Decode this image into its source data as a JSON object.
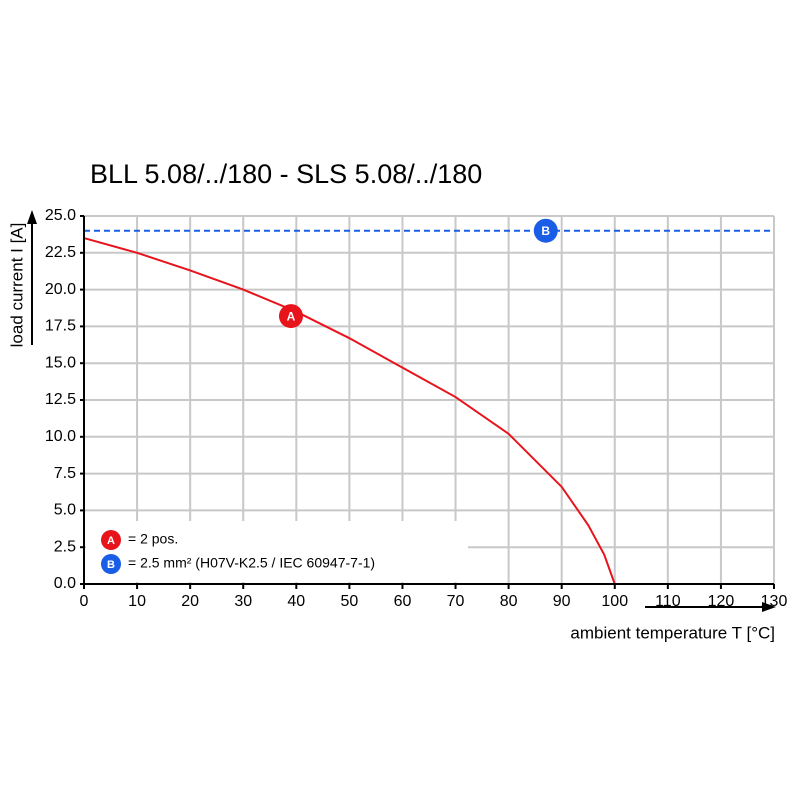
{
  "chart_data": {
    "type": "line",
    "title": "BLL 5.08/../180 - SLS 5.08/../180",
    "y_label": "load current I [A]",
    "x_label": "ambient temperature T [°C]",
    "xlim": [
      0,
      130
    ],
    "ylim": [
      0,
      25
    ],
    "xticks": [
      0,
      10,
      20,
      30,
      40,
      50,
      60,
      70,
      80,
      90,
      100,
      110,
      120,
      130
    ],
    "yticks": [
      {
        "value": 0,
        "label": "0.0"
      },
      {
        "value": 2.5,
        "label": "2.5"
      },
      {
        "value": 5,
        "label": "5.0"
      },
      {
        "value": 7.5,
        "label": "7.5"
      },
      {
        "value": 10,
        "label": "10.0"
      },
      {
        "value": 12.5,
        "label": "12.5"
      },
      {
        "value": 15,
        "label": "15.0"
      },
      {
        "value": 17.5,
        "label": "17.5"
      },
      {
        "value": 20,
        "label": "20.0"
      },
      {
        "value": 22.5,
        "label": "22.5"
      },
      {
        "value": 25,
        "label": "25.0"
      }
    ],
    "grid": true,
    "series": [
      {
        "name": "= 2 pos.",
        "marker_label": "A",
        "color": "#e8141c",
        "dashed": false,
        "x": [
          0,
          10,
          20,
          30,
          40,
          50,
          60,
          70,
          80,
          90,
          95,
          98,
          100
        ],
        "values": [
          23.5,
          22.5,
          21.3,
          20.0,
          18.5,
          16.7,
          14.7,
          12.7,
          10.2,
          6.6,
          4.0,
          2.0,
          0
        ],
        "marker_x": 39,
        "marker_y": 18.2
      },
      {
        "name": "= 2.5 mm² (H07V-K2.5 / IEC 60947-7-1)",
        "marker_label": "B",
        "color": "#1a5ee8",
        "dashed": true,
        "x": [
          0,
          130
        ],
        "values": [
          24,
          24
        ],
        "marker_x": 87,
        "marker_y": 24
      }
    ]
  }
}
